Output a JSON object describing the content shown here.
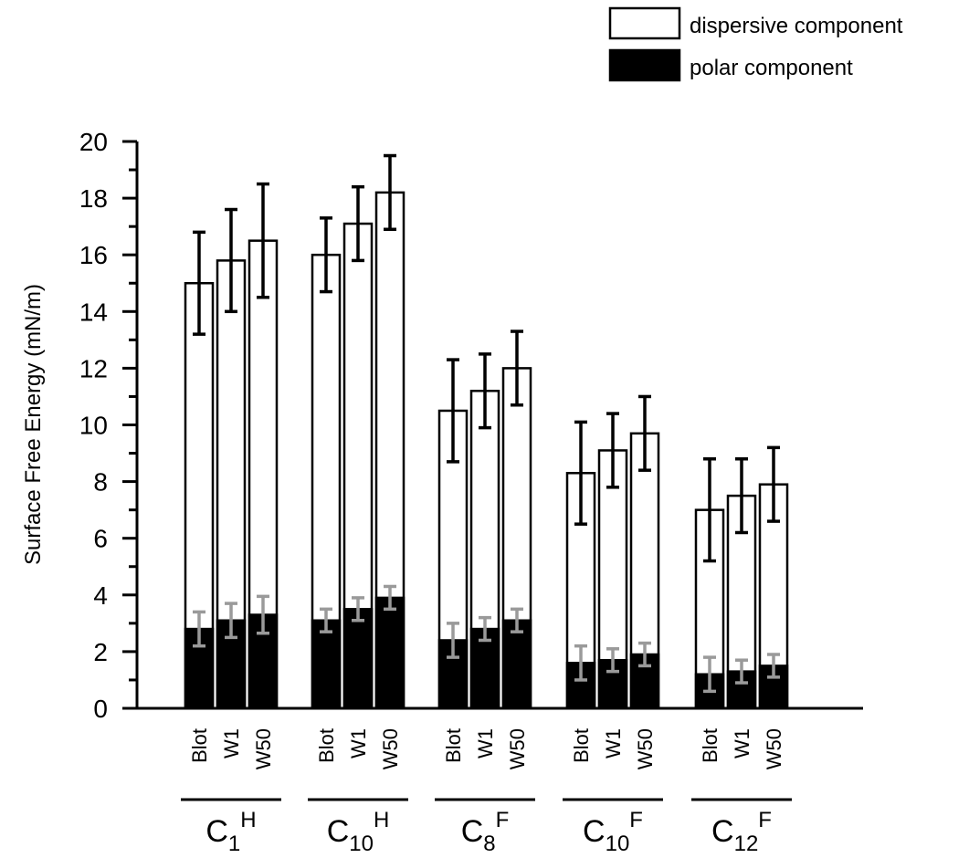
{
  "chart_data": {
    "type": "bar",
    "stacked": true,
    "ylabel": "Surface Free Energy (mN/m)",
    "ylim": [
      0,
      20
    ],
    "yticks": [
      "0",
      "2",
      "4",
      "6",
      "8",
      "10",
      "12",
      "14",
      "16",
      "18",
      "20"
    ],
    "groups": [
      {
        "base": "C",
        "sub": "1",
        "sup": "H",
        "categories": [
          "Blot",
          "W1",
          "W50"
        ],
        "polar": [
          2.8,
          3.1,
          3.3
        ],
        "polar_err": [
          0.6,
          0.6,
          0.65
        ],
        "total": [
          15.0,
          15.8,
          16.5
        ],
        "total_err": [
          1.8,
          1.8,
          2.0
        ]
      },
      {
        "base": "C",
        "sub": "10",
        "sup": "H",
        "categories": [
          "Blot",
          "W1",
          "W50"
        ],
        "polar": [
          3.1,
          3.5,
          3.9
        ],
        "polar_err": [
          0.4,
          0.4,
          0.4
        ],
        "total": [
          16.0,
          17.1,
          18.2
        ],
        "total_err": [
          1.3,
          1.3,
          1.3
        ]
      },
      {
        "base": "C",
        "sub": "8",
        "sup": "F",
        "categories": [
          "Blot",
          "W1",
          "W50"
        ],
        "polar": [
          2.4,
          2.8,
          3.1
        ],
        "polar_err": [
          0.6,
          0.4,
          0.4
        ],
        "total": [
          10.5,
          11.2,
          12.0
        ],
        "total_err": [
          1.8,
          1.3,
          1.3
        ]
      },
      {
        "base": "C",
        "sub": "10",
        "sup": "F",
        "categories": [
          "Blot",
          "W1",
          "W50"
        ],
        "polar": [
          1.6,
          1.7,
          1.9
        ],
        "polar_err": [
          0.6,
          0.4,
          0.4
        ],
        "total": [
          8.3,
          9.1,
          9.7
        ],
        "total_err": [
          1.8,
          1.3,
          1.3
        ]
      },
      {
        "base": "C",
        "sub": "12",
        "sup": "F",
        "categories": [
          "Blot",
          "W1",
          "W50"
        ],
        "polar": [
          1.2,
          1.3,
          1.5
        ],
        "polar_err": [
          0.6,
          0.4,
          0.4
        ],
        "total": [
          7.0,
          7.5,
          7.9
        ],
        "total_err": [
          1.8,
          1.3,
          1.3
        ]
      }
    ],
    "series": [
      {
        "name": "dispersive component",
        "color": "#ffffff"
      },
      {
        "name": "polar component",
        "color": "#000000"
      }
    ],
    "error_bar_colors": {
      "total": "#000000",
      "polar": "#9a9a9a"
    },
    "legend_position": "top-right",
    "grid": false
  }
}
